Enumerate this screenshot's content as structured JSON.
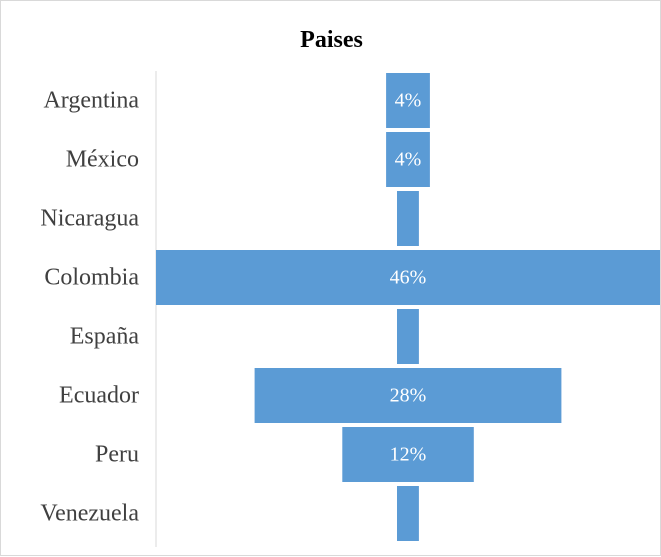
{
  "chart_data": {
    "type": "bar",
    "orientation": "horizontal-funnel",
    "title": "Paises",
    "categories": [
      "Argentina",
      "México",
      "Nicaragua",
      "Colombia",
      "España",
      "Ecuador",
      "Peru",
      "Venezuela"
    ],
    "values": [
      4,
      4,
      2,
      46,
      2,
      28,
      12,
      2
    ],
    "data_labels": [
      "4%",
      "4%",
      "",
      "46%",
      "",
      "28%",
      "12%",
      ""
    ],
    "unit": "%",
    "bar_color": "#5b9bd5",
    "label_color": "#ffffff",
    "legend": "none",
    "grid": false
  }
}
